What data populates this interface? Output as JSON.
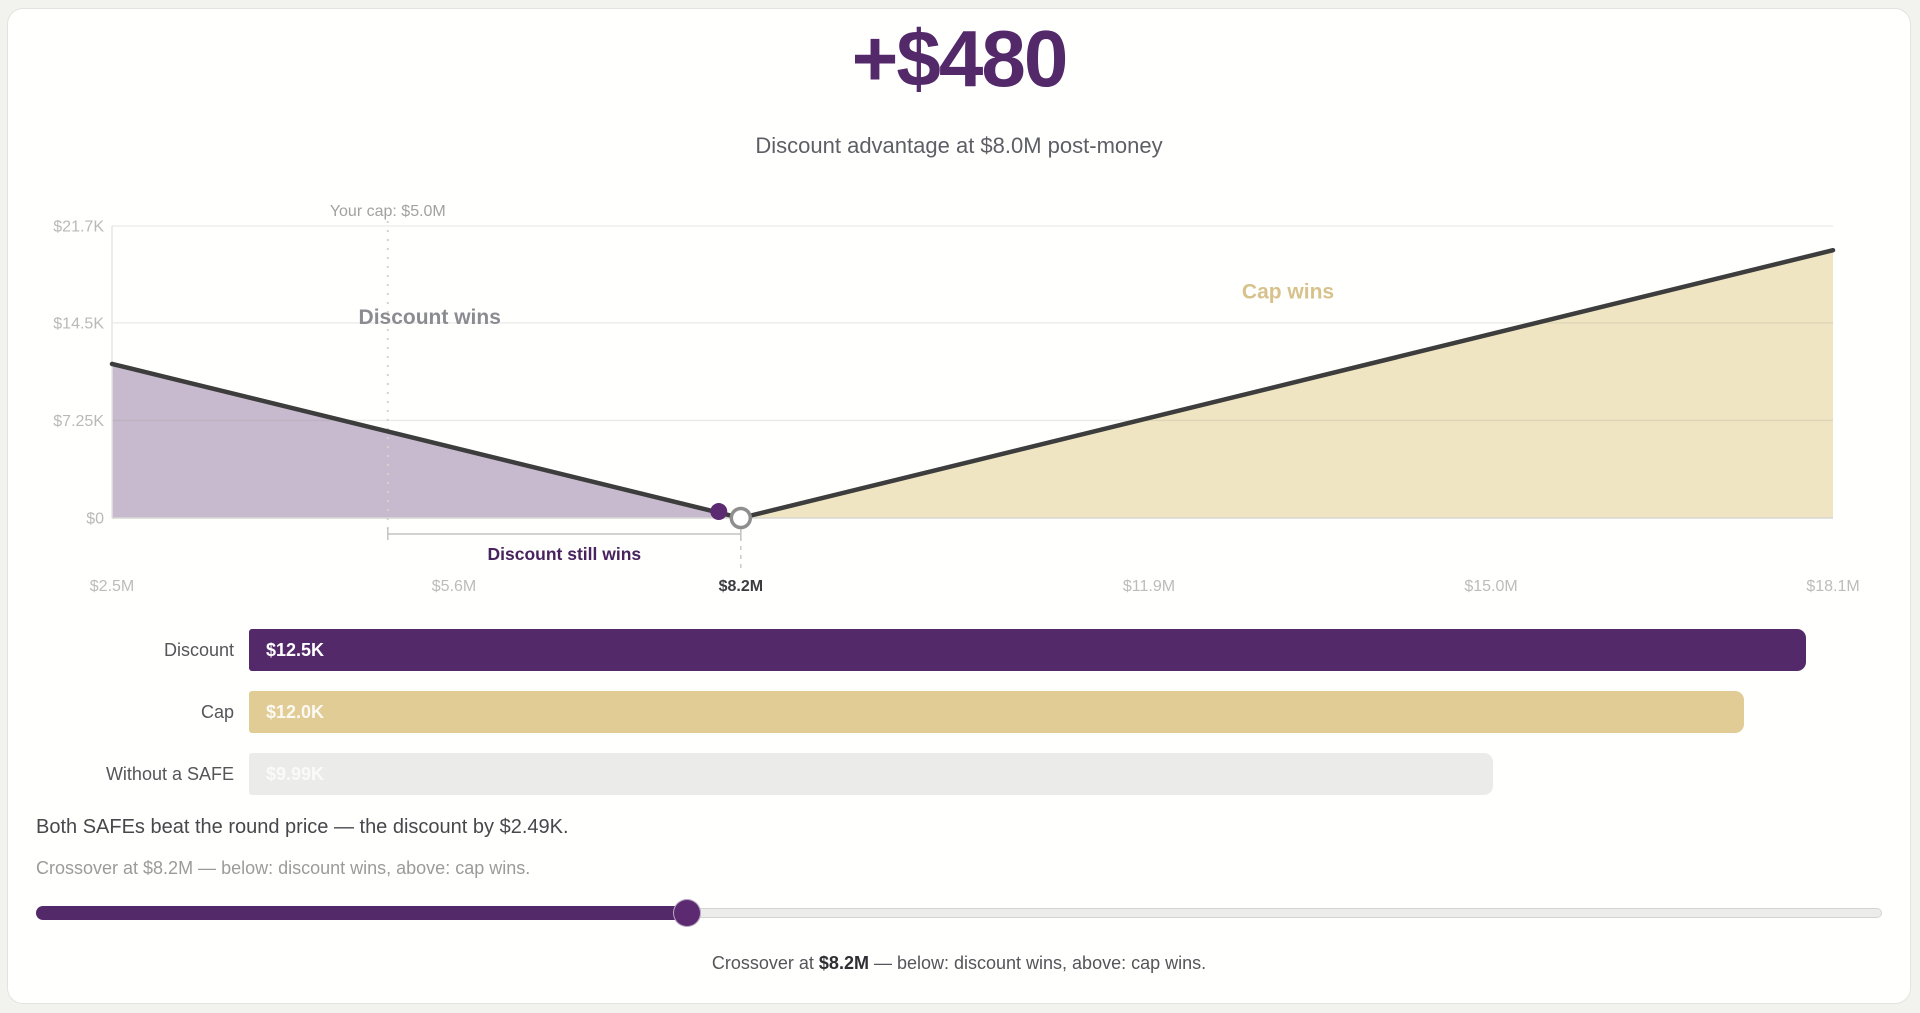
{
  "header": {
    "advantage": "+$480",
    "subtitle": "Discount advantage at $8.0M post-money"
  },
  "chart_data": {
    "type": "area",
    "title": "Discount advantage at $8.0M post-money",
    "x_axis": {
      "min": 2.5,
      "max": 18.1,
      "unit": "$M post-money valuation",
      "ticks": [
        {
          "value": 2.5,
          "label": "$2.5M"
        },
        {
          "value": 5.6,
          "label": "$5.6M"
        },
        {
          "value": 8.2,
          "label": "$8.2M",
          "emphasis": true
        },
        {
          "value": 11.9,
          "label": "$11.9M"
        },
        {
          "value": 15.0,
          "label": "$15.0M"
        },
        {
          "value": 18.1,
          "label": "$18.1M"
        }
      ]
    },
    "y_axis": {
      "min": 0,
      "max": 21700,
      "ticks": [
        {
          "value": 0,
          "label": "$0"
        },
        {
          "value": 7250,
          "label": "$7.25K"
        },
        {
          "value": 14500,
          "label": "$14.5K"
        },
        {
          "value": 21700,
          "label": "$21.7K"
        }
      ]
    },
    "grid": true,
    "line_color": "#3d3d3d",
    "series": [
      {
        "name": "Discount wins",
        "fill": "#c7bace",
        "points": [
          [
            2.5,
            11450
          ],
          [
            8.2,
            0
          ]
        ]
      },
      {
        "name": "Cap wins",
        "fill": "#f0e5c2",
        "points": [
          [
            8.2,
            0
          ],
          [
            18.1,
            19900
          ]
        ]
      }
    ],
    "annotations": {
      "cap_marker": {
        "label": "Your cap: $5.0M",
        "x": 5.0,
        "color": "#a2a29f"
      },
      "region_labels": [
        {
          "text": "Discount wins",
          "x": 5.38,
          "y": 14400,
          "color": "#8b8b92"
        },
        {
          "text": "Cap wins",
          "x": 13.16,
          "y": 16300,
          "color": "#d7c28c"
        }
      ],
      "crossover_marker": {
        "x": 8.2,
        "y": 0
      },
      "current_point": {
        "x": 8.0,
        "y": 480,
        "color": "#5b2a70"
      },
      "bracket": {
        "label": "Discount still wins",
        "from_x": 5.0,
        "to_x": 8.2,
        "label_color": "#48235e"
      }
    }
  },
  "bars": {
    "max_value": 12500,
    "items": [
      {
        "label": "Discount",
        "value": 12500,
        "value_label": "$12.5K",
        "color": "#53296a",
        "text_color": "#ffffff"
      },
      {
        "label": "Cap",
        "value": 12000,
        "value_label": "$12.0K",
        "color": "#e2cc96",
        "text_color": "#fbf9f3"
      },
      {
        "label": "Without a SAFE",
        "value": 9990,
        "value_label": "$9.99K",
        "color": "#ebebe9",
        "text_color": "#fafaf8"
      }
    ]
  },
  "summary": {
    "line1": "Both SAFEs beat the round price — the discount by $2.49K.",
    "line2": "Crossover at $8.2M — below: discount wins, above: cap wins."
  },
  "slider": {
    "min": 2.5,
    "max": 18.1,
    "value": 8.0,
    "accent": "#53296a"
  },
  "caption": {
    "prefix": "Crossover at ",
    "highlight": "$8.2M",
    "suffix": " — below: discount wins, above: cap wins."
  }
}
